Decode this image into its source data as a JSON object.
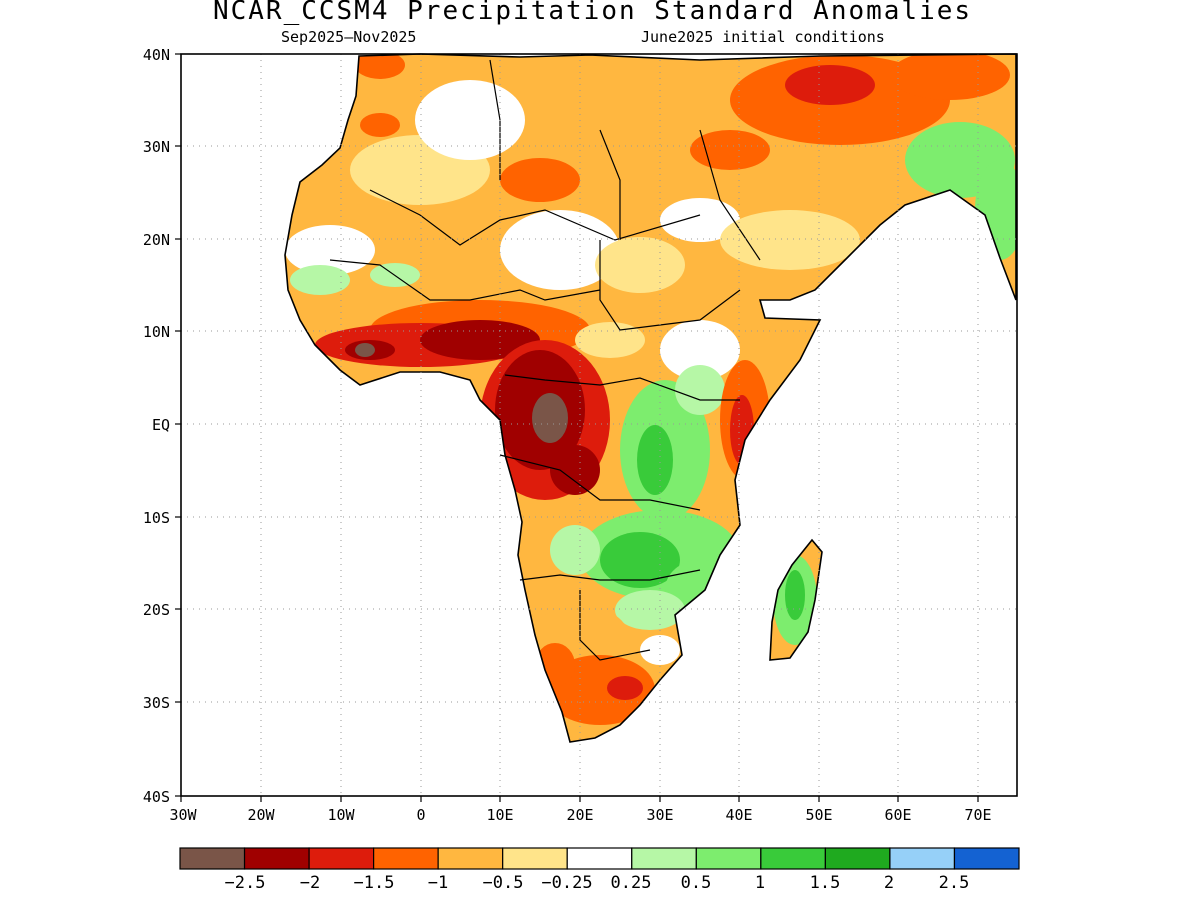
{
  "title": "NCAR_CCSM4 Precipitation Standard Anomalies",
  "subtitle_left": "Sep2025—Nov2025",
  "subtitle_right": "June2025 initial conditions",
  "map": {
    "region": "Africa",
    "lon_range": [
      -30,
      75
    ],
    "lat_range": [
      -40,
      40
    ],
    "grid": "dotted",
    "lat_ticks": [
      "40N",
      "30N",
      "20N",
      "10N",
      "EQ",
      "10S",
      "20S",
      "30S",
      "40S"
    ],
    "lon_ticks": [
      "30W",
      "20W",
      "10W",
      "0",
      "10E",
      "20E",
      "30E",
      "40E",
      "50E",
      "60E",
      "70E"
    ],
    "anomaly_regions": [
      {
        "name": "Sahel and West Africa coast",
        "level": "-1.5 to -2"
      },
      {
        "name": "Central Africa (Congo basin)",
        "level": "< -2.5"
      },
      {
        "name": "Middle East / Iran",
        "level": "-1 to -2"
      },
      {
        "name": "East Africa highlands and south-central Africa",
        "level": "+0.5 to +1.5"
      },
      {
        "name": "Madagascar",
        "level": "+1 to +1.5"
      },
      {
        "name": "Southern Africa",
        "level": "-1 to -2"
      }
    ]
  },
  "colorbar": {
    "colors": [
      "#7a5548",
      "#a00000",
      "#dd1c0c",
      "#ff6300",
      "#ffb740",
      "#ffe48a",
      "#ffffff",
      "#b6f7a6",
      "#7ded6e",
      "#39cb3a",
      "#1faa1f",
      "#96d0f8",
      "#1462d2"
    ],
    "labels": [
      "−2.5",
      "−2",
      "−1.5",
      "−1",
      "−0.5",
      "−0.25",
      "0.25",
      "0.5",
      "1",
      "1.5",
      "2",
      "2.5"
    ]
  }
}
